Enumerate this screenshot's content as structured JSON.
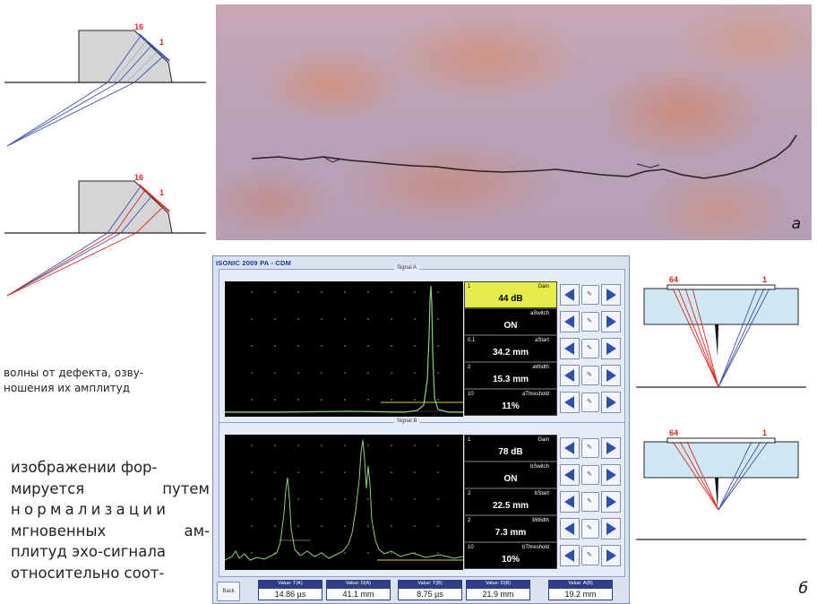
{
  "diagram_left": {
    "top_probe": {
      "label_a": "16",
      "label_b": "1"
    },
    "bottom_probe": {
      "label_a": "16",
      "label_b": "1"
    }
  },
  "caption_lines": [
    "волны от дефекта, озву-",
    "ношения их амплитуд"
  ],
  "body_lines": [
    "изображении фор-",
    "мируется путем",
    "нормализации",
    "мгновенных ам-",
    "плитуд эхо-сигнала",
    "относительно соот-"
  ],
  "body_justified": [
    {
      "left": "мируется",
      "right": "путем"
    },
    {
      "left": "мгновенных",
      "right": "ам-"
    }
  ],
  "photo": {
    "label": "а"
  },
  "figure_b_label": "б",
  "right_diagram": {
    "top": {
      "label_a": "64",
      "label_b": "1"
    },
    "bottom": {
      "label_a": "64",
      "label_b": "1"
    }
  },
  "app": {
    "title": "ISONIC 2009 PA - CDM",
    "signal_a": {
      "label": "Signal A",
      "params": [
        {
          "idx": "1",
          "name": "Gain",
          "value": "44 dB",
          "active": true
        },
        {
          "idx": "",
          "name": "aSwitch",
          "value": "ON",
          "active": false
        },
        {
          "idx": "0.1",
          "name": "aStart",
          "value": "34.2 mm",
          "active": false
        },
        {
          "idx": "2",
          "name": "aWidth",
          "value": "15.3 mm",
          "active": false
        },
        {
          "idx": "10",
          "name": "aThreshold",
          "value": "11%",
          "active": false
        }
      ]
    },
    "signal_b": {
      "label": "Signal B",
      "params": [
        {
          "idx": "1",
          "name": "Gain",
          "value": "78 dB",
          "active": false
        },
        {
          "idx": "",
          "name": "bSwitch",
          "value": "ON",
          "active": false
        },
        {
          "idx": "2",
          "name": "bStart",
          "value": "22.5 mm",
          "active": false
        },
        {
          "idx": "2",
          "name": "bWidth",
          "value": "7.3 mm",
          "active": false
        },
        {
          "idx": "10",
          "name": "bThreshold",
          "value": "10%",
          "active": false
        }
      ]
    },
    "back_label": "Back",
    "values": [
      {
        "header": "Value: T(A)",
        "value": "14.86 µs"
      },
      {
        "header": "Value: D(A)",
        "value": "41.1 mm"
      },
      {
        "header": "Value: T(B)",
        "value": "8.75 µs"
      },
      {
        "header": "Value: D(B)",
        "value": "21.9 mm"
      },
      {
        "header": "Value: A(B)",
        "value": "19.2 mm"
      }
    ]
  },
  "colors": {
    "accent_blue": "#2e3e8a",
    "active_param": "#e6ec4a",
    "trace_green": "#8bd37a",
    "red_ray": "#e0261d",
    "blue_ray": "#3a4fb0"
  }
}
